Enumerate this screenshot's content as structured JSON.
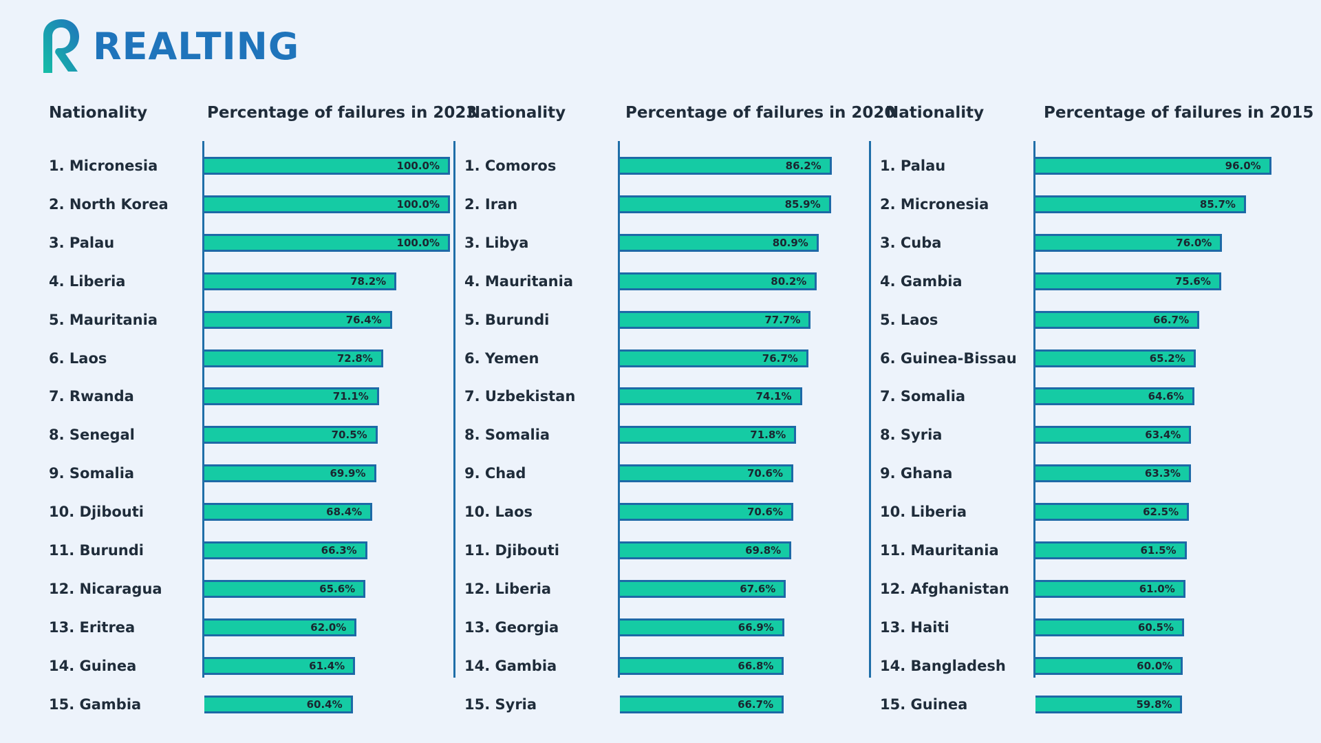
{
  "brand": {
    "name": "REALTING",
    "color": "#1f74bb",
    "logo_icon": "realting-r-logo-icon"
  },
  "colors": {
    "bar_fill": "#15cba4",
    "bar_border": "#1d69a6",
    "background": "#edf3fb",
    "text": "#1f2c3a"
  },
  "chart_data": [
    {
      "type": "bar",
      "orientation": "horizontal",
      "label_header": "Nationality",
      "value_header": "Percentage of failures in 2023",
      "unit": "%",
      "xlim": [
        0,
        100
      ],
      "categories": [
        "1. Micronesia",
        "2. North Korea",
        "3. Palau",
        "4. Liberia",
        "5. Mauritania",
        "6. Laos",
        "7. Rwanda",
        "8. Senegal",
        "9. Somalia",
        "10. Djibouti",
        "11. Burundi",
        "12. Nicaragua",
        "13. Eritrea",
        "14. Guinea",
        "15. Gambia"
      ],
      "values": [
        100.0,
        100.0,
        100.0,
        78.2,
        76.4,
        72.8,
        71.1,
        70.5,
        69.9,
        68.4,
        66.3,
        65.6,
        62.0,
        61.4,
        60.4
      ],
      "data_labels": [
        "100.0%",
        "100.0%",
        "100.0%",
        "78.2%",
        "76.4%",
        "72.8%",
        "71.1%",
        "70.5%",
        "69.9%",
        "68.4%",
        "66.3%",
        "65.6%",
        "62.0%",
        "61.4%",
        "60.4%"
      ]
    },
    {
      "type": "bar",
      "orientation": "horizontal",
      "label_header": "Nationality",
      "value_header": "Percentage of failures in 2020",
      "unit": "%",
      "xlim": [
        0,
        100
      ],
      "categories": [
        "1. Comoros",
        "2. Iran",
        "3. Libya",
        "4. Mauritania",
        "5. Burundi",
        "6. Yemen",
        "7. Uzbekistan",
        "8. Somalia",
        "9. Chad",
        "10. Laos",
        "11. Djibouti",
        "12. Liberia",
        "13. Georgia",
        "14. Gambia",
        "15. Syria"
      ],
      "values": [
        86.2,
        85.9,
        80.9,
        80.2,
        77.7,
        76.7,
        74.1,
        71.8,
        70.6,
        70.6,
        69.8,
        67.6,
        66.9,
        66.8,
        66.7
      ],
      "data_labels": [
        "86.2%",
        "85.9%",
        "80.9%",
        "80.2%",
        "77.7%",
        "76.7%",
        "74.1%",
        "71.8%",
        "70.6%",
        "70.6%",
        "69.8%",
        "67.6%",
        "66.9%",
        "66.8%",
        "66.7%"
      ]
    },
    {
      "type": "bar",
      "orientation": "horizontal",
      "label_header": "Nationality",
      "value_header": "Percentage of failures in 2015",
      "unit": "%",
      "xlim": [
        0,
        100
      ],
      "categories": [
        "1. Palau",
        "2. Micronesia",
        "3. Cuba",
        "4. Gambia",
        "5. Laos",
        "6. Guinea-Bissau",
        "7. Somalia",
        "8. Syria",
        "9. Ghana",
        "10. Liberia",
        "11. Mauritania",
        "12. Afghanistan",
        "13. Haiti",
        "14. Bangladesh",
        "15. Guinea"
      ],
      "values": [
        96.0,
        85.7,
        76.0,
        75.6,
        66.7,
        65.2,
        64.6,
        63.4,
        63.3,
        62.5,
        61.5,
        61.0,
        60.5,
        60.0,
        59.8
      ],
      "data_labels": [
        "96.0%",
        "85.7%",
        "76.0%",
        "75.6%",
        "66.7%",
        "65.2%",
        "64.6%",
        "63.4%",
        "63.3%",
        "62.5%",
        "61.5%",
        "61.0%",
        "60.5%",
        "60.0%",
        "59.8%"
      ]
    }
  ]
}
